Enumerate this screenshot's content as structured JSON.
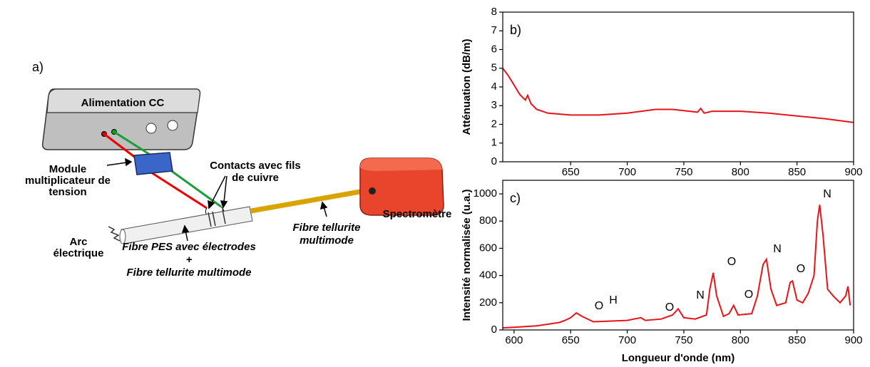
{
  "diagram": {
    "panel_label": "a)",
    "power_supply": "Alimentation CC",
    "module": [
      "Module",
      "multiplicateur de",
      "tension"
    ],
    "contacts": [
      "Contacts avec fils",
      "de cuivre"
    ],
    "spectrometer": "Spectromètre",
    "arc": [
      "Arc",
      "électrique"
    ],
    "fiber_pes": [
      "Fibre PES avec électrodes",
      "+",
      "Fibre tellurite multimode"
    ],
    "fiber_tellurite": [
      "Fibre tellurite",
      "multimode"
    ]
  },
  "chart_data": [
    {
      "type": "line",
      "panel_label": "b)",
      "ylabel": "Atténuation (dB/m)",
      "color": "#e8141a",
      "xlim": [
        590,
        900
      ],
      "xticks": [
        650,
        700,
        750,
        800,
        850,
        900
      ],
      "ylim": [
        0,
        8
      ],
      "yticks": [
        0,
        1,
        2,
        3,
        4,
        5,
        6,
        7,
        8
      ],
      "x": [
        590,
        595,
        600,
        605,
        610,
        612,
        615,
        620,
        630,
        650,
        675,
        700,
        725,
        740,
        755,
        762,
        765,
        768,
        775,
        800,
        825,
        850,
        875,
        900
      ],
      "values": [
        5.0,
        4.6,
        4.1,
        3.6,
        3.3,
        3.55,
        3.1,
        2.8,
        2.6,
        2.5,
        2.5,
        2.6,
        2.8,
        2.8,
        2.7,
        2.65,
        2.85,
        2.6,
        2.7,
        2.7,
        2.6,
        2.45,
        2.3,
        2.1
      ]
    },
    {
      "type": "line",
      "panel_label": "c)",
      "ylabel": "Intensité normalisée (u.a.)",
      "xlabel": "Longueur d'onde (nm)",
      "color": "#e8141a",
      "xlim": [
        590,
        900
      ],
      "xticks": [
        600,
        650,
        700,
        750,
        800,
        850,
        900
      ],
      "ylim": [
        0,
        1100
      ],
      "yticks": [
        0,
        200,
        400,
        600,
        800,
        1000
      ],
      "x": [
        590,
        600,
        620,
        640,
        645,
        650,
        655,
        660,
        670,
        700,
        712,
        716,
        730,
        740,
        745,
        750,
        760,
        770,
        773,
        776,
        779,
        785,
        790,
        794,
        798,
        810,
        815,
        820,
        823,
        827,
        832,
        840,
        844,
        846,
        850,
        855,
        860,
        865,
        868,
        870,
        873,
        877,
        882,
        888,
        893,
        895,
        897
      ],
      "values": [
        15,
        20,
        30,
        55,
        70,
        90,
        125,
        100,
        60,
        70,
        90,
        70,
        80,
        110,
        155,
        90,
        80,
        110,
        300,
        420,
        250,
        100,
        120,
        180,
        110,
        120,
        250,
        480,
        520,
        300,
        180,
        200,
        350,
        360,
        220,
        200,
        270,
        400,
        800,
        920,
        700,
        300,
        250,
        200,
        250,
        320,
        180
      ],
      "annotations": [
        "O",
        "H",
        "O",
        "N",
        "O",
        "O",
        "N",
        "O",
        "N"
      ]
    }
  ]
}
